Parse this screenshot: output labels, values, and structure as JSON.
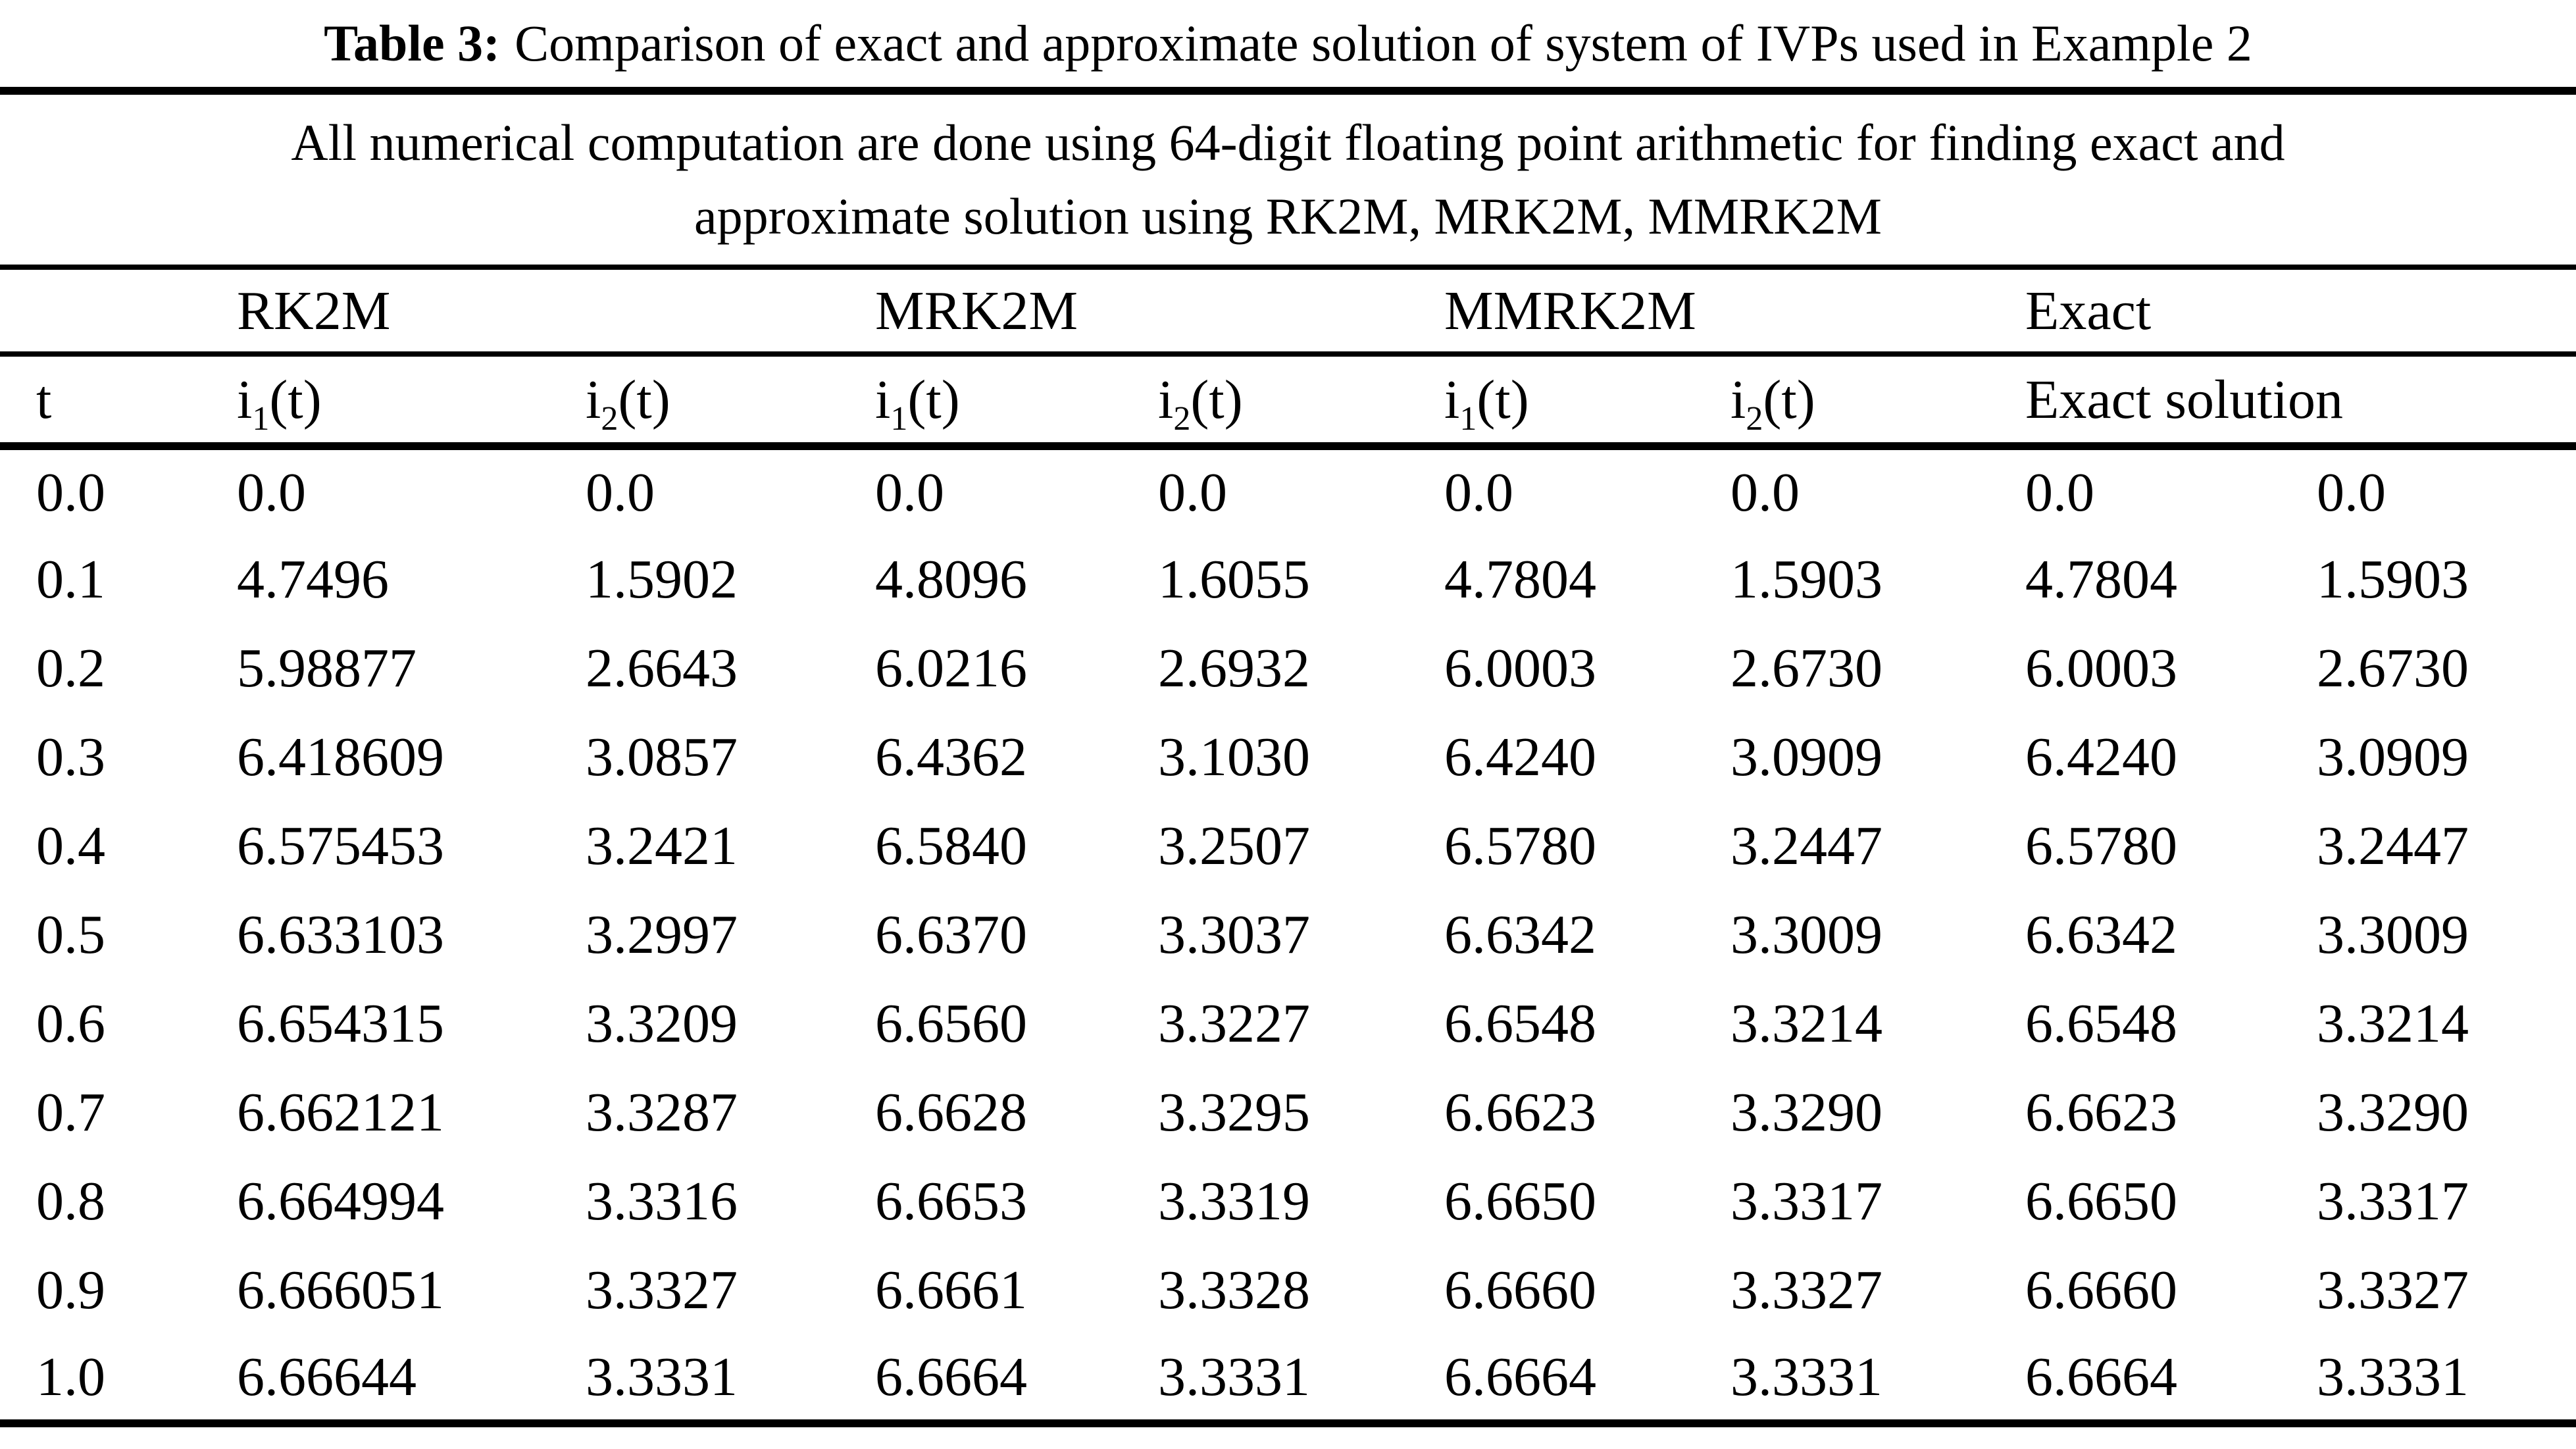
{
  "colors": {
    "ink": "#000000",
    "paper": "#ffffff"
  },
  "document": {
    "title": {
      "label": "Table 3:",
      "text": "Comparison of exact and approximate solution of system of IVPs used in Example 2"
    },
    "subtitle": {
      "line1": "All numerical computation are done using 64-digit floating point arithmetic for finding exact and",
      "line2": "approximate solution using RK2M, MRK2M, MMRK2M"
    }
  },
  "table": {
    "group_headers": {
      "rk2m": "RK2M",
      "mrk2m": "MRK2M",
      "mmrk2m": "MMRK2M",
      "exact": "Exact"
    },
    "col_headers": {
      "t": "t",
      "i1": {
        "base": "i",
        "sub": "1",
        "args": "(t)"
      },
      "i2": {
        "base": "i",
        "sub": "2",
        "args": "(t)"
      },
      "exact_solution": "Exact solution"
    },
    "rows": [
      [
        "0.0",
        "0.0",
        "0.0",
        "0.0",
        "0.0",
        "0.0",
        "0.0",
        "0.0",
        "0.0"
      ],
      [
        "0.1",
        "4.7496",
        "1.5902",
        "4.8096",
        "1.6055",
        "4.7804",
        "1.5903",
        "4.7804",
        "1.5903"
      ],
      [
        "0.2",
        "5.98877",
        "2.6643",
        "6.0216",
        "2.6932",
        "6.0003",
        "2.6730",
        "6.0003",
        "2.6730"
      ],
      [
        "0.3",
        "6.418609",
        "3.0857",
        "6.4362",
        "3.1030",
        "6.4240",
        "3.0909",
        "6.4240",
        "3.0909"
      ],
      [
        "0.4",
        "6.575453",
        "3.2421",
        "6.5840",
        "3.2507",
        "6.5780",
        "3.2447",
        "6.5780",
        "3.2447"
      ],
      [
        "0.5",
        "6.633103",
        "3.2997",
        "6.6370",
        "3.3037",
        "6.6342",
        "3.3009",
        "6.6342",
        "3.3009"
      ],
      [
        "0.6",
        "6.654315",
        "3.3209",
        "6.6560",
        "3.3227",
        "6.6548",
        "3.3214",
        "6.6548",
        "3.3214"
      ],
      [
        "0.7",
        "6.662121",
        "3.3287",
        "6.6628",
        "3.3295",
        "6.6623",
        "3.3290",
        "6.6623",
        "3.3290"
      ],
      [
        "0.8",
        "6.664994",
        "3.3316",
        "6.6653",
        "3.3319",
        "6.6650",
        "3.3317",
        "6.6650",
        "3.3317"
      ],
      [
        "0.9",
        "6.666051",
        "3.3327",
        "6.6661",
        "3.3328",
        "6.6660",
        "3.3327",
        "6.6660",
        "3.3327"
      ],
      [
        "1.0",
        "6.66644",
        "3.3331",
        "6.6664",
        "3.3331",
        "6.6664",
        "3.3331",
        "6.6664",
        "3.3331"
      ]
    ]
  }
}
